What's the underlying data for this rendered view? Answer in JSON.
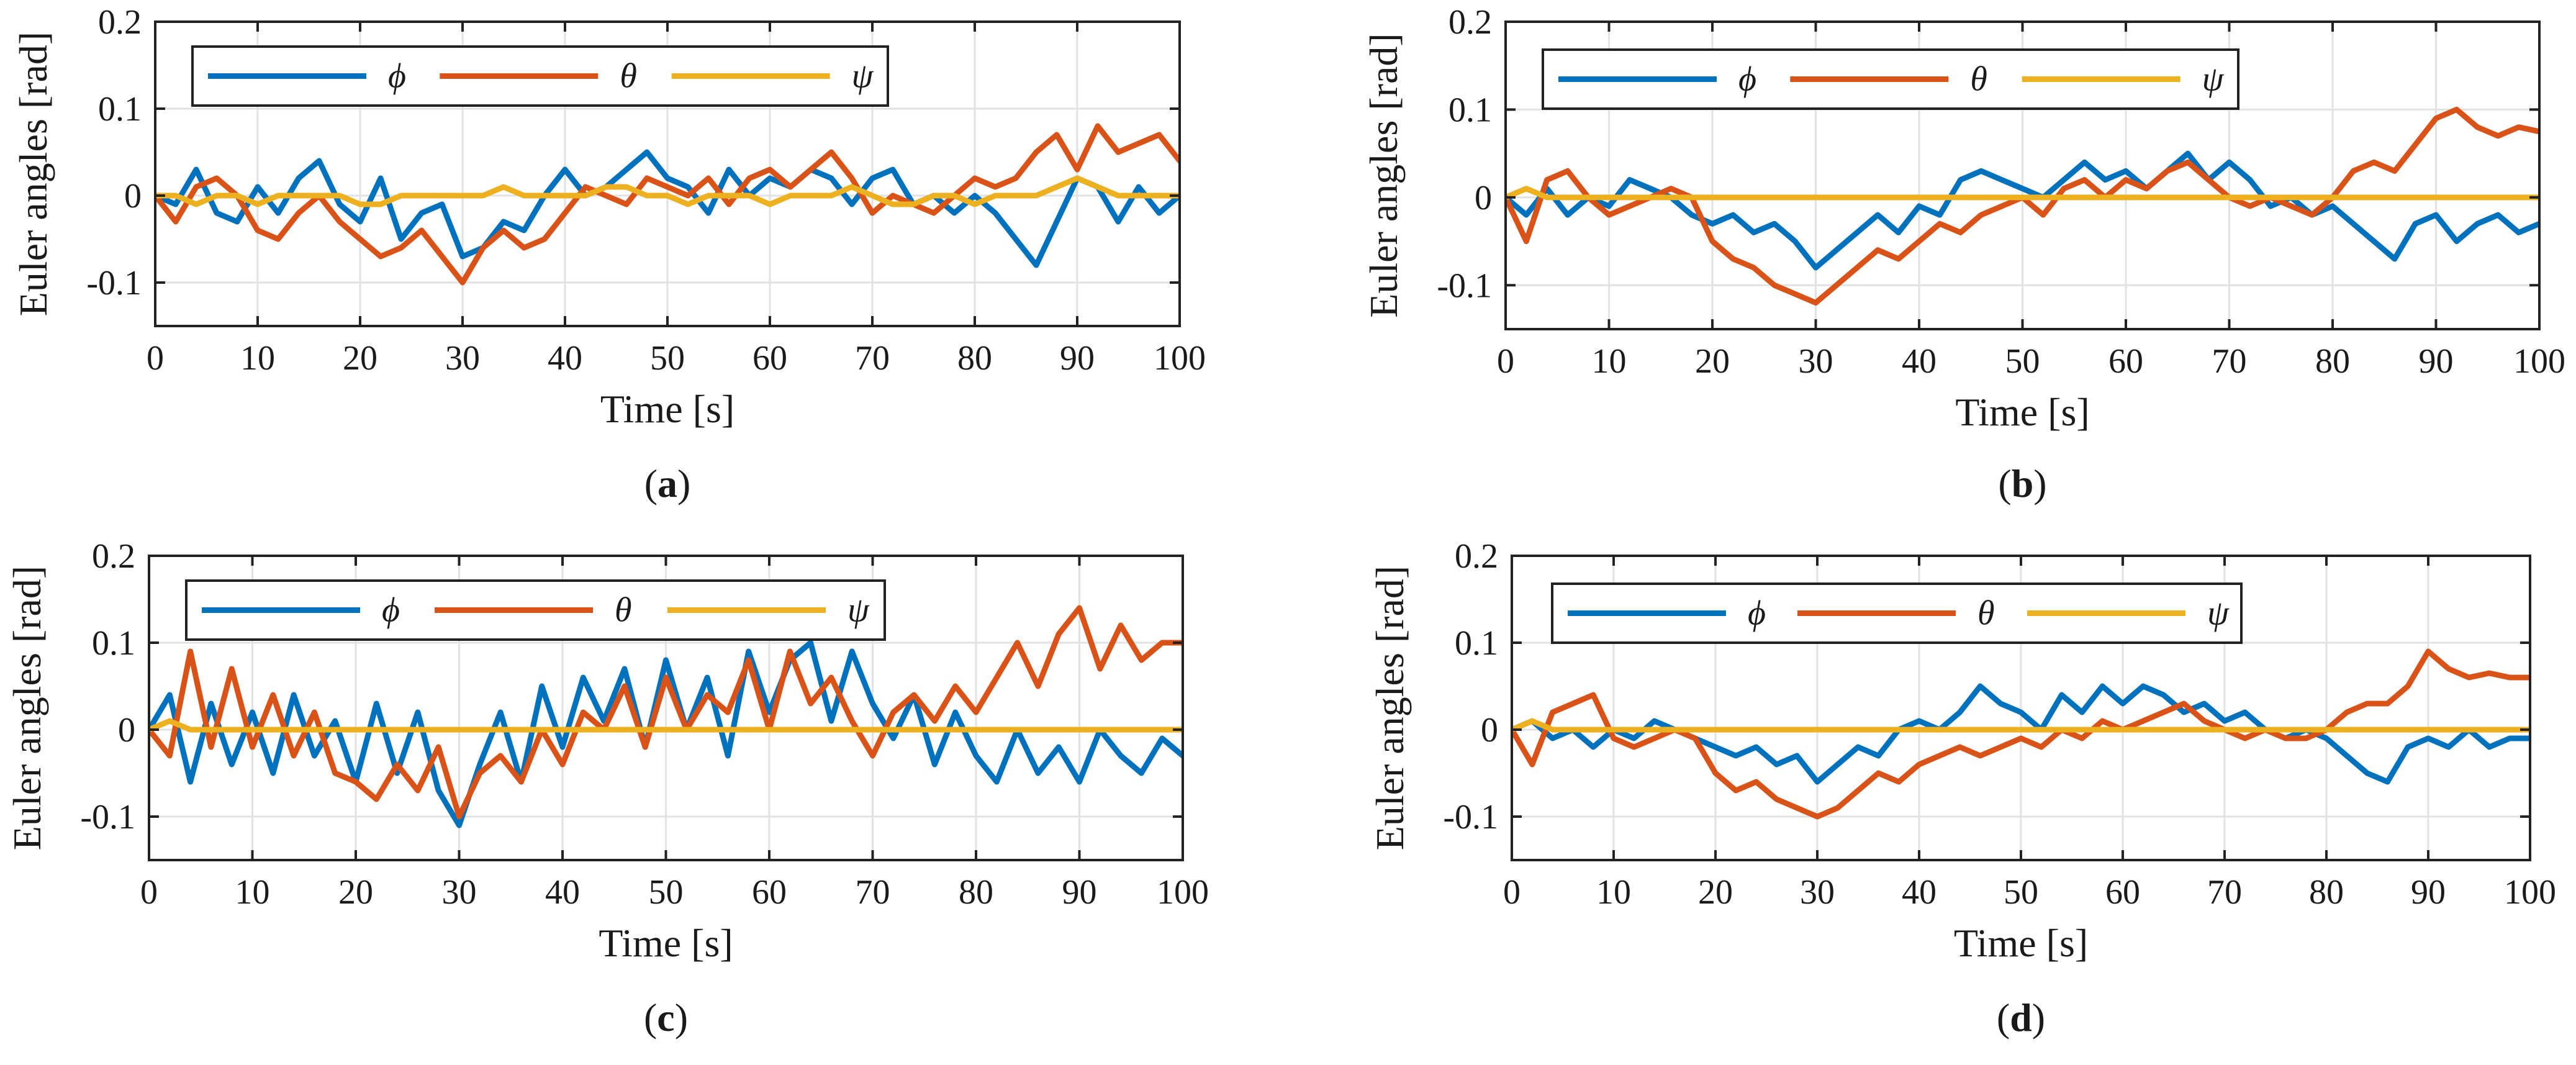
{
  "figure": {
    "panels": [
      {
        "caption_letter": "a"
      },
      {
        "caption_letter": "b"
      },
      {
        "caption_letter": "c"
      },
      {
        "caption_letter": "d"
      }
    ]
  },
  "colors": {
    "phi": "#0072BD",
    "theta": "#D95319",
    "psi": "#EDB120",
    "grid": "#e2e2e2",
    "axis": "#222222"
  },
  "chart_data": [
    {
      "type": "line",
      "panel": "a",
      "xlabel": "Time [s]",
      "ylabel": "Euler angles [rad]",
      "xlim": [
        0,
        100
      ],
      "ylim": [
        -0.15,
        0.2
      ],
      "xticks": [
        0,
        10,
        20,
        30,
        40,
        50,
        60,
        70,
        80,
        90,
        100
      ],
      "yticks": [
        -0.1,
        0,
        0.1,
        0.2
      ],
      "ytick_labels": [
        "-0.1",
        "0",
        "0.1",
        "0.2"
      ],
      "grid": true,
      "legend": "top, horizontal",
      "x": [
        0,
        2,
        4,
        6,
        8,
        10,
        12,
        14,
        16,
        18,
        20,
        22,
        24,
        26,
        28,
        30,
        32,
        34,
        36,
        38,
        40,
        42,
        44,
        46,
        48,
        50,
        52,
        54,
        56,
        58,
        60,
        62,
        64,
        66,
        68,
        70,
        72,
        74,
        76,
        78,
        80,
        82,
        84,
        86,
        88,
        90,
        92,
        94,
        96,
        98,
        100
      ],
      "series": [
        {
          "name": "ϕ",
          "color_key": "phi",
          "values": [
            0.0,
            -0.01,
            0.03,
            -0.02,
            -0.03,
            0.01,
            -0.02,
            0.02,
            0.04,
            -0.01,
            -0.03,
            0.02,
            -0.05,
            -0.02,
            -0.01,
            -0.07,
            -0.06,
            -0.03,
            -0.04,
            0.0,
            0.03,
            0.0,
            0.01,
            0.03,
            0.05,
            0.02,
            0.01,
            -0.02,
            0.03,
            0.0,
            0.02,
            0.01,
            0.03,
            0.02,
            -0.01,
            0.02,
            0.03,
            -0.01,
            0.0,
            -0.02,
            0.0,
            -0.02,
            -0.05,
            -0.08,
            -0.03,
            0.02,
            0.01,
            -0.03,
            0.01,
            -0.02,
            0.0
          ]
        },
        {
          "name": "θ",
          "color_key": "theta",
          "values": [
            0.0,
            -0.03,
            0.01,
            0.02,
            0.0,
            -0.04,
            -0.05,
            -0.02,
            0.0,
            -0.03,
            -0.05,
            -0.07,
            -0.06,
            -0.04,
            -0.07,
            -0.1,
            -0.06,
            -0.04,
            -0.06,
            -0.05,
            -0.02,
            0.01,
            0.0,
            -0.01,
            0.02,
            0.01,
            0.0,
            0.02,
            -0.01,
            0.02,
            0.03,
            0.01,
            0.03,
            0.05,
            0.02,
            -0.02,
            0.0,
            -0.01,
            -0.02,
            0.0,
            0.02,
            0.01,
            0.02,
            0.05,
            0.07,
            0.03,
            0.08,
            0.05,
            0.06,
            0.07,
            0.04
          ]
        },
        {
          "name": "ψ",
          "color_key": "psi",
          "values": [
            0.0,
            0.0,
            -0.01,
            0.0,
            0.0,
            -0.01,
            0.0,
            0.0,
            0.0,
            0.0,
            -0.01,
            -0.01,
            0.0,
            0.0,
            0.0,
            0.0,
            0.0,
            0.01,
            0.0,
            0.0,
            0.0,
            0.0,
            0.01,
            0.01,
            0.0,
            0.0,
            -0.01,
            0.0,
            0.0,
            0.0,
            -0.01,
            0.0,
            0.0,
            0.0,
            0.01,
            0.0,
            -0.01,
            -0.01,
            0.0,
            0.0,
            -0.01,
            0.0,
            0.0,
            0.0,
            0.01,
            0.02,
            0.01,
            0.0,
            0.0,
            0.0,
            0.0
          ]
        }
      ]
    },
    {
      "type": "line",
      "panel": "b",
      "xlabel": "Time [s]",
      "ylabel": "Euler angles [rad]",
      "xlim": [
        0,
        100
      ],
      "ylim": [
        -0.15,
        0.2
      ],
      "xticks": [
        0,
        10,
        20,
        30,
        40,
        50,
        60,
        70,
        80,
        90,
        100
      ],
      "yticks": [
        -0.1,
        0,
        0.1,
        0.2
      ],
      "ytick_labels": [
        "-0.1",
        "0",
        "0.1",
        "0.2"
      ],
      "grid": true,
      "legend": "top, horizontal",
      "x": [
        0,
        2,
        4,
        6,
        8,
        10,
        12,
        14,
        16,
        18,
        20,
        22,
        24,
        26,
        28,
        30,
        32,
        34,
        36,
        38,
        40,
        42,
        44,
        46,
        48,
        50,
        52,
        54,
        56,
        58,
        60,
        62,
        64,
        66,
        68,
        70,
        72,
        74,
        76,
        78,
        80,
        82,
        84,
        86,
        88,
        90,
        92,
        94,
        96,
        98,
        100
      ],
      "series": [
        {
          "name": "ϕ",
          "color_key": "phi",
          "values": [
            0.0,
            -0.02,
            0.01,
            -0.02,
            0.0,
            -0.01,
            0.02,
            0.01,
            0.0,
            -0.02,
            -0.03,
            -0.02,
            -0.04,
            -0.03,
            -0.05,
            -0.08,
            -0.06,
            -0.04,
            -0.02,
            -0.04,
            -0.01,
            -0.02,
            0.02,
            0.03,
            0.02,
            0.01,
            0.0,
            0.02,
            0.04,
            0.02,
            0.03,
            0.01,
            0.03,
            0.05,
            0.02,
            0.04,
            0.02,
            -0.01,
            0.0,
            -0.02,
            -0.01,
            -0.03,
            -0.05,
            -0.07,
            -0.03,
            -0.02,
            -0.05,
            -0.03,
            -0.02,
            -0.04,
            -0.03
          ]
        },
        {
          "name": "θ",
          "color_key": "theta",
          "values": [
            0.0,
            -0.05,
            0.02,
            0.03,
            0.0,
            -0.02,
            -0.01,
            0.0,
            0.01,
            0.0,
            -0.05,
            -0.07,
            -0.08,
            -0.1,
            -0.11,
            -0.12,
            -0.1,
            -0.08,
            -0.06,
            -0.07,
            -0.05,
            -0.03,
            -0.04,
            -0.02,
            -0.01,
            0.0,
            -0.02,
            0.01,
            0.02,
            0.0,
            0.02,
            0.01,
            0.03,
            0.04,
            0.02,
            0.0,
            -0.01,
            0.0,
            -0.01,
            -0.02,
            0.0,
            0.03,
            0.04,
            0.03,
            0.06,
            0.09,
            0.1,
            0.08,
            0.07,
            0.08,
            0.075
          ]
        },
        {
          "name": "ψ",
          "color_key": "psi",
          "values": [
            0.0,
            0.01,
            0.0,
            0.0,
            0.0,
            0.0,
            0.0,
            0.0,
            0.0,
            0.0,
            0.0,
            0.0,
            0.0,
            0.0,
            0.0,
            0.0,
            0.0,
            0.0,
            0.0,
            0.0,
            0.0,
            0.0,
            0.0,
            0.0,
            0.0,
            0.0,
            0.0,
            0.0,
            0.0,
            0.0,
            0.0,
            0.0,
            0.0,
            0.0,
            0.0,
            0.0,
            0.0,
            0.0,
            0.0,
            0.0,
            0.0,
            0.0,
            0.0,
            0.0,
            0.0,
            0.0,
            0.0,
            0.0,
            0.0,
            0.0,
            0.0
          ]
        }
      ]
    },
    {
      "type": "line",
      "panel": "c",
      "xlabel": "Time [s]",
      "ylabel": "Euler angles [rad]",
      "xlim": [
        0,
        100
      ],
      "ylim": [
        -0.15,
        0.2
      ],
      "xticks": [
        0,
        10,
        20,
        30,
        40,
        50,
        60,
        70,
        80,
        90,
        100
      ],
      "yticks": [
        -0.1,
        0,
        0.1,
        0.2
      ],
      "ytick_labels": [
        "-0.1",
        "0",
        "0.1",
        "0.2"
      ],
      "grid": true,
      "legend": "top, horizontal",
      "x": [
        0,
        2,
        4,
        6,
        8,
        10,
        12,
        14,
        16,
        18,
        20,
        22,
        24,
        26,
        28,
        30,
        32,
        34,
        36,
        38,
        40,
        42,
        44,
        46,
        48,
        50,
        52,
        54,
        56,
        58,
        60,
        62,
        64,
        66,
        68,
        70,
        72,
        74,
        76,
        78,
        80,
        82,
        84,
        86,
        88,
        90,
        92,
        94,
        96,
        98,
        100
      ],
      "series": [
        {
          "name": "ϕ",
          "color_key": "phi",
          "values": [
            0.0,
            0.04,
            -0.06,
            0.03,
            -0.04,
            0.02,
            -0.05,
            0.04,
            -0.03,
            0.01,
            -0.06,
            0.03,
            -0.05,
            0.02,
            -0.07,
            -0.11,
            -0.04,
            0.02,
            -0.06,
            0.05,
            -0.02,
            0.06,
            0.01,
            0.07,
            -0.02,
            0.08,
            0.0,
            0.06,
            -0.03,
            0.09,
            0.02,
            0.08,
            0.1,
            0.01,
            0.09,
            0.03,
            -0.01,
            0.04,
            -0.04,
            0.02,
            -0.03,
            -0.06,
            0.0,
            -0.05,
            -0.02,
            -0.06,
            0.0,
            -0.03,
            -0.05,
            -0.01,
            -0.03
          ]
        },
        {
          "name": "θ",
          "color_key": "theta",
          "values": [
            0.0,
            -0.03,
            0.09,
            -0.02,
            0.07,
            -0.02,
            0.04,
            -0.03,
            0.02,
            -0.05,
            -0.06,
            -0.08,
            -0.04,
            -0.07,
            -0.02,
            -0.1,
            -0.05,
            -0.03,
            -0.06,
            0.0,
            -0.04,
            0.02,
            0.0,
            0.05,
            -0.02,
            0.06,
            0.0,
            0.04,
            0.02,
            0.08,
            0.0,
            0.09,
            0.03,
            0.06,
            0.01,
            -0.03,
            0.02,
            0.04,
            0.01,
            0.05,
            0.02,
            0.06,
            0.1,
            0.05,
            0.11,
            0.14,
            0.07,
            0.12,
            0.08,
            0.1,
            0.1
          ]
        },
        {
          "name": "ψ",
          "color_key": "psi",
          "values": [
            0.0,
            0.01,
            0.0,
            0.0,
            0.0,
            0.0,
            0.0,
            0.0,
            0.0,
            0.0,
            0.0,
            0.0,
            0.0,
            0.0,
            0.0,
            0.0,
            0.0,
            0.0,
            0.0,
            0.0,
            0.0,
            0.0,
            0.0,
            0.0,
            0.0,
            0.0,
            0.0,
            0.0,
            0.0,
            0.0,
            0.0,
            0.0,
            0.0,
            0.0,
            0.0,
            0.0,
            0.0,
            0.0,
            0.0,
            0.0,
            0.0,
            0.0,
            0.0,
            0.0,
            0.0,
            0.0,
            0.0,
            0.0,
            0.0,
            0.0,
            0.0
          ]
        }
      ]
    },
    {
      "type": "line",
      "panel": "d",
      "xlabel": "Time [s]",
      "ylabel": "Euler angles [rad]",
      "xlim": [
        0,
        100
      ],
      "ylim": [
        -0.15,
        0.2
      ],
      "xticks": [
        0,
        10,
        20,
        30,
        40,
        50,
        60,
        70,
        80,
        90,
        100
      ],
      "yticks": [
        -0.1,
        0,
        0.1,
        0.2
      ],
      "ytick_labels": [
        "-0.1",
        "0",
        "0.1",
        "0.2"
      ],
      "grid": true,
      "legend": "top, horizontal",
      "x": [
        0,
        2,
        4,
        6,
        8,
        10,
        12,
        14,
        16,
        18,
        20,
        22,
        24,
        26,
        28,
        30,
        32,
        34,
        36,
        38,
        40,
        42,
        44,
        46,
        48,
        50,
        52,
        54,
        56,
        58,
        60,
        62,
        64,
        66,
        68,
        70,
        72,
        74,
        76,
        78,
        80,
        82,
        84,
        86,
        88,
        90,
        92,
        94,
        96,
        98,
        100
      ],
      "series": [
        {
          "name": "ϕ",
          "color_key": "phi",
          "values": [
            0.0,
            0.01,
            -0.01,
            0.0,
            -0.02,
            0.0,
            -0.01,
            0.01,
            0.0,
            -0.01,
            -0.02,
            -0.03,
            -0.02,
            -0.04,
            -0.03,
            -0.06,
            -0.04,
            -0.02,
            -0.03,
            0.0,
            0.01,
            0.0,
            0.02,
            0.05,
            0.03,
            0.02,
            0.0,
            0.04,
            0.02,
            0.05,
            0.03,
            0.05,
            0.04,
            0.02,
            0.03,
            0.01,
            0.02,
            0.0,
            -0.01,
            0.0,
            -0.01,
            -0.03,
            -0.05,
            -0.06,
            -0.02,
            -0.01,
            -0.02,
            0.0,
            -0.02,
            -0.01,
            -0.01
          ]
        },
        {
          "name": "θ",
          "color_key": "theta",
          "values": [
            0.0,
            -0.04,
            0.02,
            0.03,
            0.04,
            -0.01,
            -0.02,
            -0.01,
            0.0,
            -0.01,
            -0.05,
            -0.07,
            -0.06,
            -0.08,
            -0.09,
            -0.1,
            -0.09,
            -0.07,
            -0.05,
            -0.06,
            -0.04,
            -0.03,
            -0.02,
            -0.03,
            -0.02,
            -0.01,
            -0.02,
            0.0,
            -0.01,
            0.01,
            0.0,
            0.01,
            0.02,
            0.03,
            0.01,
            0.0,
            -0.01,
            0.0,
            -0.01,
            -0.01,
            0.0,
            0.02,
            0.03,
            0.03,
            0.05,
            0.09,
            0.07,
            0.06,
            0.065,
            0.06,
            0.06
          ]
        },
        {
          "name": "ψ",
          "color_key": "psi",
          "values": [
            0.0,
            0.01,
            0.0,
            0.0,
            0.0,
            0.0,
            0.0,
            0.0,
            0.0,
            0.0,
            0.0,
            0.0,
            0.0,
            0.0,
            0.0,
            0.0,
            0.0,
            0.0,
            0.0,
            0.0,
            0.0,
            0.0,
            0.0,
            0.0,
            0.0,
            0.0,
            0.0,
            0.0,
            0.0,
            0.0,
            0.0,
            0.0,
            0.0,
            0.0,
            0.0,
            0.0,
            0.0,
            0.0,
            0.0,
            0.0,
            0.0,
            0.0,
            0.0,
            0.0,
            0.0,
            0.0,
            0.0,
            0.0,
            0.0,
            0.0,
            0.0
          ]
        }
      ]
    }
  ]
}
